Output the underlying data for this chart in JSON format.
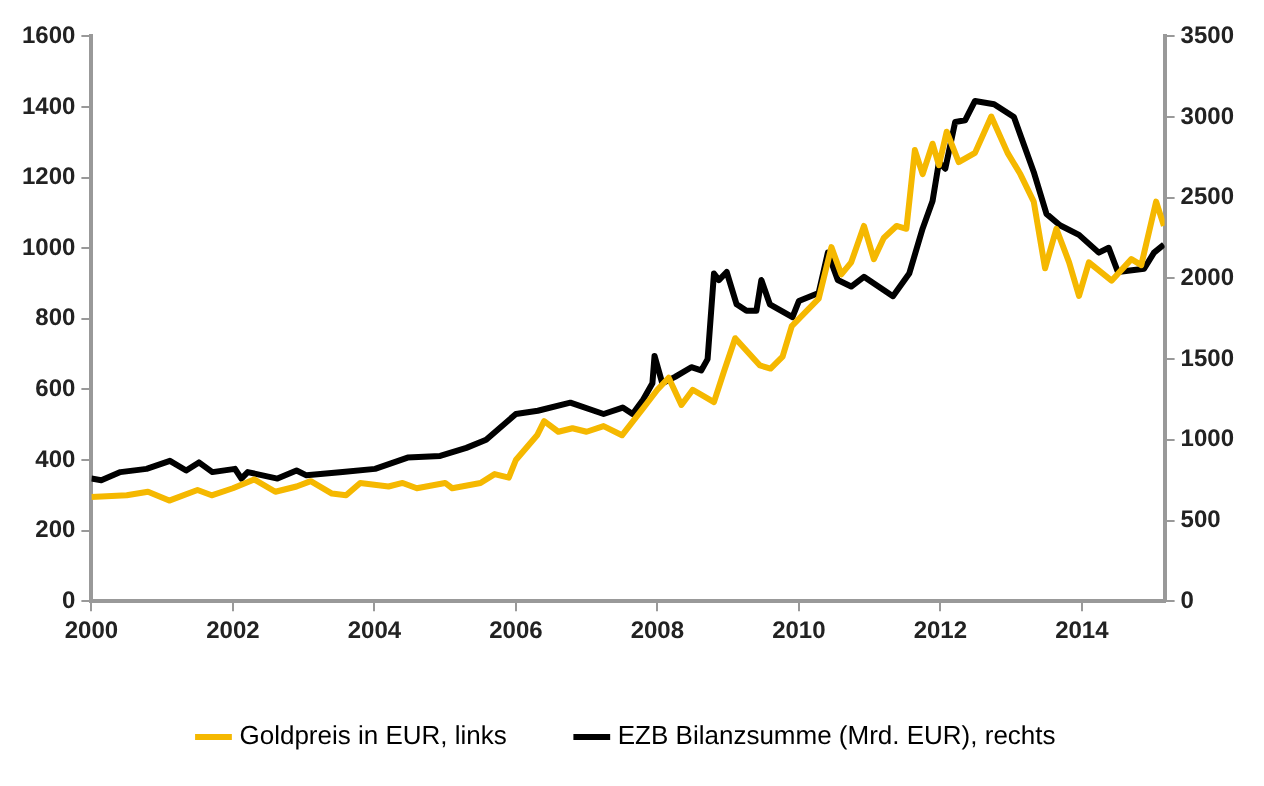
{
  "chart_data": {
    "type": "line",
    "xlim": [
      2000,
      2015.17
    ],
    "xticks": [
      2000,
      2002,
      2004,
      2006,
      2008,
      2010,
      2012,
      2014
    ],
    "ylim": [
      0,
      1600
    ],
    "yticks": [
      0,
      200,
      400,
      600,
      800,
      1000,
      1200,
      1400,
      1600
    ],
    "y2lim": [
      0,
      3500
    ],
    "y2ticks": [
      0,
      500,
      1000,
      1500,
      2000,
      2500,
      3000,
      3500
    ],
    "grid": false,
    "legend": "bottom",
    "marker": "none",
    "line_style": "solid",
    "series": [
      {
        "name": "Goldpreis in EUR, links",
        "color": "#f5b800",
        "x": [
          2000,
          2000.5,
          2000.8,
          2001.1,
          2001.5,
          2001.7,
          2002,
          2002.3,
          2002.6,
          2002.9,
          2003.1,
          2003.4,
          2003.6,
          2003.8,
          2004.2,
          2004.4,
          2004.6,
          2005,
          2005.1,
          2005.5,
          2005.7,
          2005.9,
          2006,
          2006.3,
          2006.4,
          2006.6,
          2006.8,
          2007,
          2007.24,
          2007.5,
          2007.8,
          2008,
          2008.16,
          2008.34,
          2008.5,
          2008.8,
          2008.94,
          2009.1,
          2009.45,
          2009.6,
          2009.77,
          2009.9,
          2010.28,
          2010.46,
          2010.6,
          2010.74,
          2010.92,
          2011.06,
          2011.2,
          2011.38,
          2011.52,
          2011.64,
          2011.75,
          2011.89,
          2011.98,
          2012.09,
          2012.26,
          2012.49,
          2012.72,
          2012.95,
          2013.13,
          2013.32,
          2013.48,
          2013.64,
          2013.82,
          2013.96,
          2014.1,
          2014.42,
          2014.7,
          2014.84,
          2015.05,
          2015.16
        ],
        "values": [
          295,
          300,
          310,
          285,
          315,
          300,
          320,
          345,
          310,
          325,
          340,
          305,
          300,
          335,
          325,
          335,
          320,
          335,
          320,
          335,
          360,
          350,
          400,
          470,
          510,
          480,
          490,
          480,
          496,
          470,
          547,
          599,
          633,
          556,
          599,
          564,
          650,
          745,
          668,
          659,
          693,
          779,
          857,
          1003,
          926,
          960,
          1063,
          969,
          1029,
          1063,
          1055,
          1278,
          1210,
          1296,
          1235,
          1330,
          1244,
          1270,
          1373,
          1270,
          1210,
          1132,
          943,
          1055,
          960,
          865,
          960,
          908,
          969,
          952,
          1132,
          1063
        ]
      },
      {
        "name": "EZB Bilanzsumme (Mrd. EUR), rechts",
        "color": "#000000",
        "axis": "y2",
        "x": [
          2000,
          2000.14,
          2000.41,
          2000.78,
          2001.11,
          2001.34,
          2001.52,
          2001.71,
          2002.03,
          2002.12,
          2002.21,
          2002.63,
          2002.9,
          2003.04,
          2003.55,
          2004.01,
          2004.47,
          2004.93,
          2005.3,
          2005.58,
          2006,
          2006.31,
          2006.77,
          2007.24,
          2007.51,
          2007.65,
          2007.8,
          2007.93,
          2007.96,
          2008.07,
          2008.25,
          2008.48,
          2008.62,
          2008.71,
          2008.8,
          2008.87,
          2008.98,
          2009.12,
          2009.26,
          2009.4,
          2009.47,
          2009.59,
          2009.91,
          2010,
          2010.28,
          2010.41,
          2010.55,
          2010.74,
          2010.92,
          2011.33,
          2011.56,
          2011.75,
          2011.89,
          2011.98,
          2012.07,
          2012.21,
          2012.35,
          2012.49,
          2012.76,
          2013.04,
          2013.32,
          2013.5,
          2013.69,
          2013.96,
          2014.24,
          2014.38,
          2014.51,
          2014.88,
          2015.02,
          2015.16
        ],
        "values": [
          760,
          750,
          800,
          820,
          870,
          810,
          860,
          800,
          820,
          760,
          800,
          760,
          810,
          780,
          800,
          820,
          890,
          900,
          950,
          1000,
          1160,
          1180,
          1230,
          1160,
          1200,
          1160,
          1250,
          1350,
          1520,
          1350,
          1390,
          1450,
          1430,
          1500,
          2030,
          1990,
          2040,
          1840,
          1800,
          1800,
          1990,
          1840,
          1760,
          1860,
          1910,
          2160,
          1990,
          1950,
          2010,
          1890,
          2030,
          2310,
          2480,
          2720,
          2680,
          2970,
          2980,
          3100,
          3080,
          3000,
          2660,
          2400,
          2330,
          2270,
          2160,
          2190,
          2040,
          2060,
          2160,
          2210
        ]
      }
    ]
  }
}
